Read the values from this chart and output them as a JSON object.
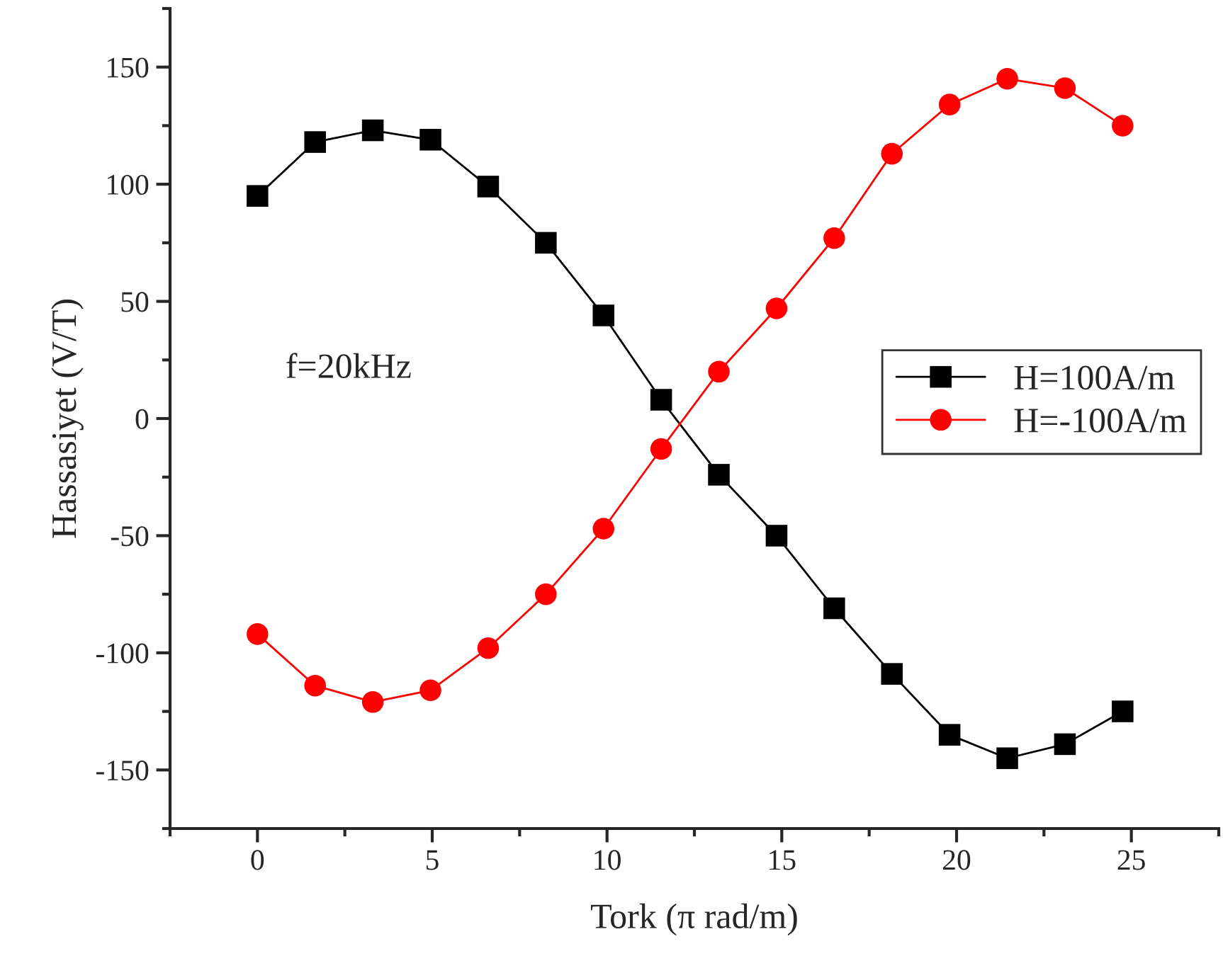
{
  "chart_data": {
    "type": "line",
    "xlabel": "Tork (π rad/m)",
    "ylabel": "Hassasiyet (V/T)",
    "annotations": [
      "f=20kHz"
    ],
    "x": [
      0,
      1.65,
      3.3,
      4.95,
      6.6,
      8.25,
      9.9,
      11.55,
      13.2,
      14.85,
      16.5,
      18.15,
      19.8,
      21.45,
      23.1,
      24.75
    ],
    "series": [
      {
        "name": "H=100A/m",
        "color": "#000000",
        "marker": "square",
        "values": [
          95,
          118,
          123,
          119,
          99,
          75,
          44,
          8,
          -24,
          -50,
          -81,
          -109,
          -135,
          -145,
          -139,
          -125
        ]
      },
      {
        "name": "H=-100A/m",
        "color": "#ff0000",
        "marker": "circle",
        "values": [
          -92,
          -114,
          -121,
          -116,
          -98,
          -75,
          -47,
          -13,
          20,
          47,
          77,
          113,
          134,
          145,
          141,
          125
        ]
      }
    ],
    "xlim": [
      -2.5,
      27.5
    ],
    "xticks": [
      0,
      5,
      10,
      15,
      20,
      25
    ],
    "ylim": [
      -175,
      175
    ],
    "yticks": [
      -150,
      -100,
      -50,
      0,
      50,
      100,
      150
    ],
    "grid": false,
    "legend": "right",
    "line_style": "solid"
  }
}
